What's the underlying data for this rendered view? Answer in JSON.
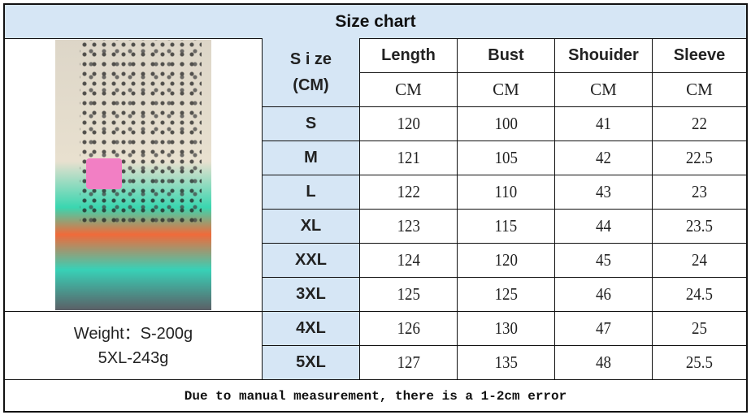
{
  "title": "Size chart",
  "size_header": [
    "S i ze",
    "(CM)"
  ],
  "columns": [
    {
      "label": "Length",
      "unit": "CM"
    },
    {
      "label": "Bust",
      "unit": "CM"
    },
    {
      "label": "Shouider",
      "unit": "CM"
    },
    {
      "label": "Sleeve",
      "unit": "CM"
    }
  ],
  "rows": [
    {
      "size": "S",
      "values": [
        "120",
        "100",
        "41",
        "22"
      ]
    },
    {
      "size": "M",
      "values": [
        "121",
        "105",
        "42",
        "22.5"
      ]
    },
    {
      "size": "L",
      "values": [
        "122",
        "110",
        "43",
        "23"
      ]
    },
    {
      "size": "XL",
      "values": [
        "123",
        "115",
        "44",
        "23.5"
      ]
    },
    {
      "size": "XXL",
      "values": [
        "124",
        "120",
        "45",
        "24"
      ]
    },
    {
      "size": "3XL",
      "values": [
        "125",
        "125",
        "46",
        "24.5"
      ]
    },
    {
      "size": "4XL",
      "values": [
        "126",
        "130",
        "47",
        "25"
      ]
    },
    {
      "size": "5XL",
      "values": [
        "127",
        "135",
        "48",
        "25.5"
      ]
    }
  ],
  "weight": [
    "Weight：S-200g",
    "5XL-243g"
  ],
  "footer_note": "Due to manual measurement, there is a 1-2cm error",
  "colors": {
    "header_bg": "#d6e6f5",
    "size_col_bg": "#d6e6f5"
  }
}
